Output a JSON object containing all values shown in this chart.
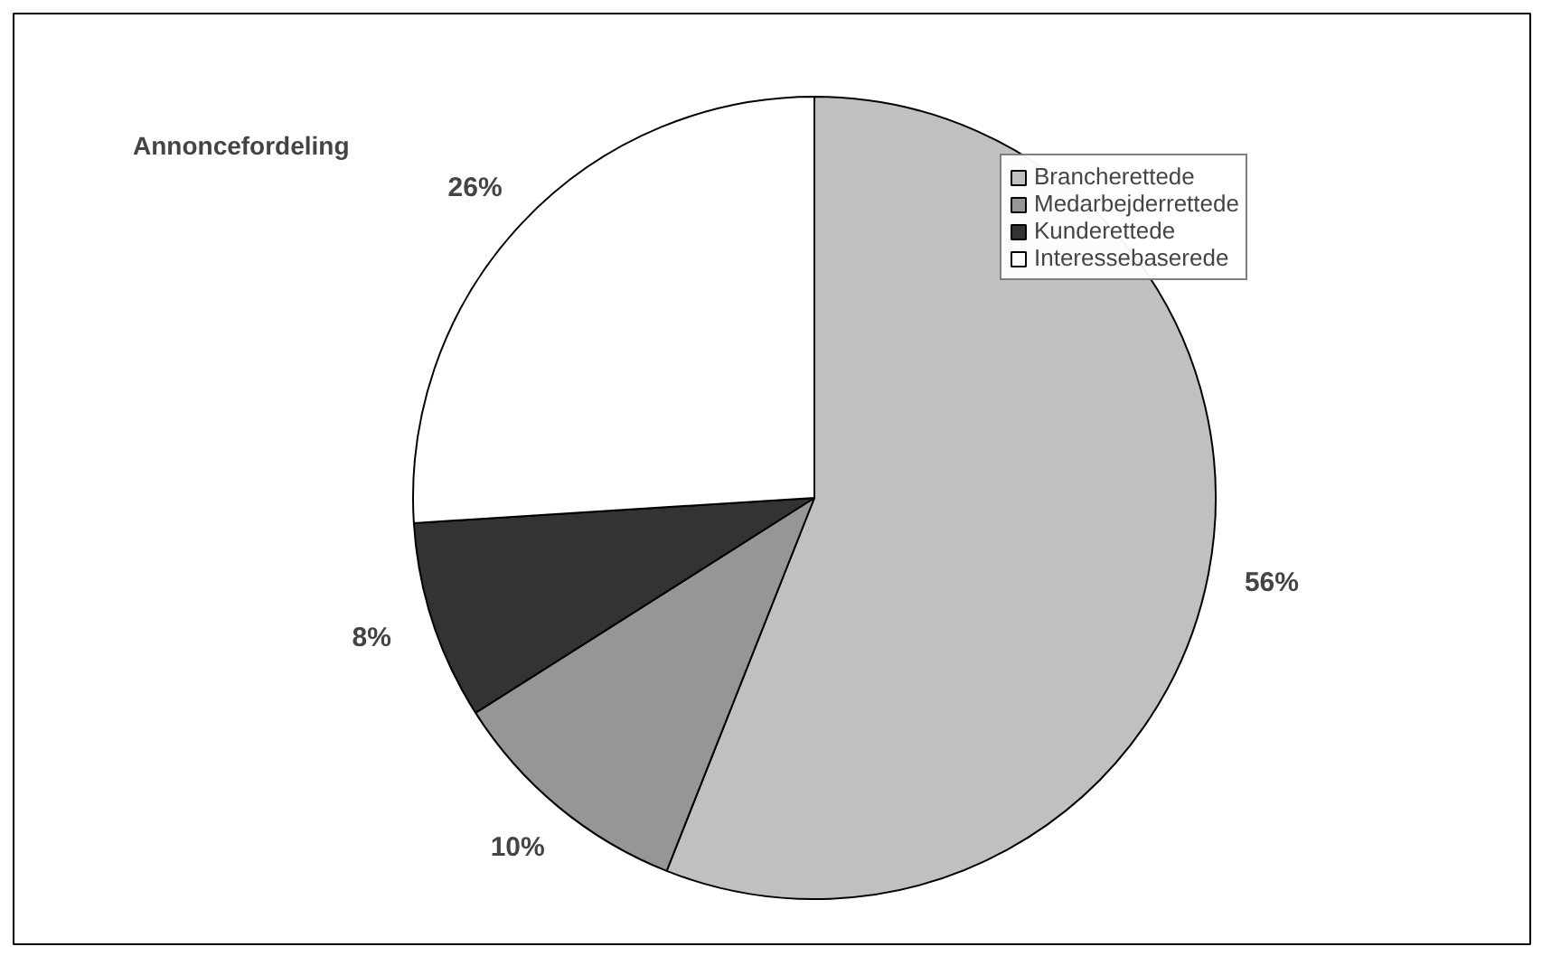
{
  "chart_data": {
    "type": "pie",
    "title": "Annoncefordeling",
    "categories": [
      "Brancherettede",
      "Medarbejderrettede",
      "Kunderettede",
      "Interessebaserede"
    ],
    "values": [
      56,
      10,
      8,
      26
    ],
    "colors": [
      "#c0c0c0",
      "#969696",
      "#333333",
      "#ffffff"
    ],
    "value_labels": [
      "56%",
      "10%",
      "8%",
      "26%"
    ],
    "legend": "top right"
  }
}
